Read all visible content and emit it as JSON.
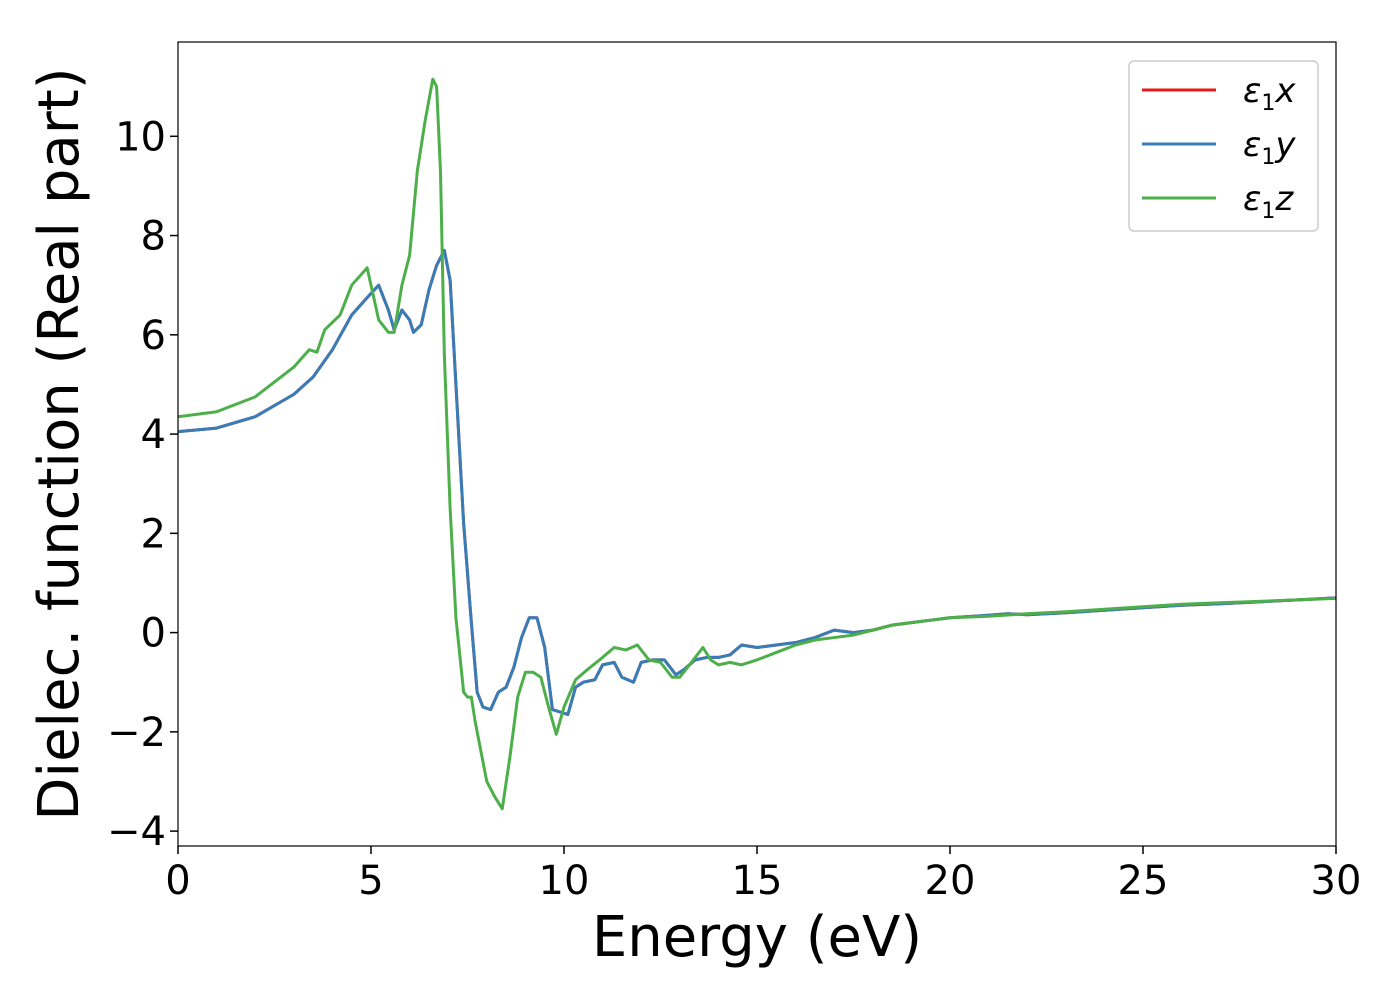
{
  "chart_data": {
    "type": "line",
    "title": "",
    "xlabel": "Energy (eV)",
    "ylabel": "Dielec. function (Real part)",
    "xlim": [
      0,
      30
    ],
    "ylim": [
      -4.3,
      11.9
    ],
    "xticks": [
      0,
      5,
      10,
      15,
      20,
      25,
      30
    ],
    "xtick_labels": [
      "0",
      "5",
      "10",
      "15",
      "20",
      "25",
      "30"
    ],
    "yticks": [
      -4,
      -2,
      0,
      2,
      4,
      6,
      8,
      10
    ],
    "ytick_labels": [
      "−4",
      "−2",
      "0",
      "2",
      "4",
      "6",
      "8",
      "10"
    ],
    "grid": false,
    "legend_position": "top-right",
    "series": [
      {
        "name": "ε",
        "sub": "1",
        "axis": "x",
        "color": "#e41a1c",
        "x": [
          0,
          1,
          2,
          3,
          3.5,
          4,
          4.5,
          4.9,
          5.2,
          5.45,
          5.6,
          5.8,
          6,
          6.1,
          6.3,
          6.5,
          6.7,
          6.9,
          7.05,
          7.2,
          7.4,
          7.6,
          7.75,
          7.9,
          8.1,
          8.3,
          8.5,
          8.7,
          8.9,
          9.1,
          9.3,
          9.5,
          9.7,
          9.9,
          10.1,
          10.3,
          10.5,
          10.8,
          11,
          11.3,
          11.5,
          11.8,
          12,
          12.3,
          12.6,
          12.9,
          13.1,
          13.4,
          13.7,
          14,
          14.3,
          14.6,
          15,
          15.5,
          16,
          16.5,
          17,
          17.5,
          18,
          18.5,
          19,
          19.5,
          20,
          21,
          21.5,
          22,
          23,
          24,
          25,
          26,
          27,
          28,
          29,
          30
        ],
        "values": [
          4.05,
          4.12,
          4.35,
          4.8,
          5.15,
          5.7,
          6.4,
          6.75,
          7.0,
          6.5,
          6.1,
          6.5,
          6.3,
          6.05,
          6.2,
          6.9,
          7.4,
          7.7,
          7.1,
          5.0,
          2.2,
          0.2,
          -1.2,
          -1.5,
          -1.55,
          -1.2,
          -1.1,
          -0.7,
          -0.1,
          0.3,
          0.3,
          -0.3,
          -1.55,
          -1.6,
          -1.65,
          -1.1,
          -1.0,
          -0.95,
          -0.65,
          -0.6,
          -0.9,
          -1.0,
          -0.6,
          -0.55,
          -0.55,
          -0.85,
          -0.75,
          -0.55,
          -0.5,
          -0.5,
          -0.45,
          -0.25,
          -0.3,
          -0.25,
          -0.2,
          -0.1,
          0.05,
          0.0,
          0.05,
          0.15,
          0.2,
          0.25,
          0.3,
          0.35,
          0.38,
          0.36,
          0.4,
          0.45,
          0.5,
          0.55,
          0.58,
          0.62,
          0.66,
          0.7
        ]
      },
      {
        "name": "ε",
        "sub": "1",
        "axis": "y",
        "color": "#377eb8",
        "x": [
          0,
          1,
          2,
          3,
          3.5,
          4,
          4.5,
          4.9,
          5.2,
          5.45,
          5.6,
          5.8,
          6,
          6.1,
          6.3,
          6.5,
          6.7,
          6.9,
          7.05,
          7.2,
          7.4,
          7.6,
          7.75,
          7.9,
          8.1,
          8.3,
          8.5,
          8.7,
          8.9,
          9.1,
          9.3,
          9.5,
          9.7,
          9.9,
          10.1,
          10.3,
          10.5,
          10.8,
          11,
          11.3,
          11.5,
          11.8,
          12,
          12.3,
          12.6,
          12.9,
          13.1,
          13.4,
          13.7,
          14,
          14.3,
          14.6,
          15,
          15.5,
          16,
          16.5,
          17,
          17.5,
          18,
          18.5,
          19,
          19.5,
          20,
          21,
          21.5,
          22,
          23,
          24,
          25,
          26,
          27,
          28,
          29,
          30
        ],
        "values": [
          4.05,
          4.12,
          4.35,
          4.8,
          5.15,
          5.7,
          6.4,
          6.75,
          7.0,
          6.5,
          6.1,
          6.5,
          6.3,
          6.05,
          6.2,
          6.9,
          7.4,
          7.7,
          7.1,
          5.0,
          2.2,
          0.2,
          -1.2,
          -1.5,
          -1.55,
          -1.2,
          -1.1,
          -0.7,
          -0.1,
          0.3,
          0.3,
          -0.3,
          -1.55,
          -1.6,
          -1.65,
          -1.1,
          -1.0,
          -0.95,
          -0.65,
          -0.6,
          -0.9,
          -1.0,
          -0.6,
          -0.55,
          -0.55,
          -0.85,
          -0.75,
          -0.55,
          -0.5,
          -0.5,
          -0.45,
          -0.25,
          -0.3,
          -0.25,
          -0.2,
          -0.1,
          0.05,
          0.0,
          0.05,
          0.15,
          0.2,
          0.25,
          0.3,
          0.35,
          0.38,
          0.36,
          0.4,
          0.45,
          0.5,
          0.55,
          0.58,
          0.62,
          0.66,
          0.7
        ]
      },
      {
        "name": "ε",
        "sub": "1",
        "axis": "z",
        "color": "#4daf4a",
        "x": [
          0,
          1,
          2,
          3,
          3.4,
          3.6,
          3.8,
          4.2,
          4.5,
          4.9,
          5.2,
          5.45,
          5.6,
          5.8,
          6,
          6.2,
          6.4,
          6.6,
          6.7,
          6.8,
          6.9,
          7.05,
          7.2,
          7.4,
          7.5,
          7.6,
          7.7,
          7.8,
          8.0,
          8.2,
          8.4,
          8.6,
          8.8,
          9.0,
          9.2,
          9.4,
          9.6,
          9.8,
          10,
          10.3,
          10.6,
          11,
          11.3,
          11.6,
          11.9,
          12.2,
          12.5,
          12.8,
          13.0,
          13.3,
          13.6,
          13.8,
          14.0,
          14.3,
          14.6,
          15,
          15.5,
          16,
          16.5,
          17,
          17.5,
          18,
          18.5,
          19,
          19.5,
          20,
          21,
          22,
          23,
          24,
          25,
          26,
          27,
          28,
          29,
          30
        ],
        "values": [
          4.35,
          4.45,
          4.75,
          5.35,
          5.7,
          5.65,
          6.1,
          6.4,
          7.0,
          7.35,
          6.3,
          6.05,
          6.05,
          7.0,
          7.6,
          9.3,
          10.3,
          11.15,
          11.0,
          9.3,
          5.6,
          2.5,
          0.3,
          -1.2,
          -1.3,
          -1.3,
          -1.8,
          -2.2,
          -3.0,
          -3.3,
          -3.55,
          -2.5,
          -1.3,
          -0.8,
          -0.8,
          -0.9,
          -1.5,
          -2.05,
          -1.5,
          -0.95,
          -0.75,
          -0.5,
          -0.3,
          -0.35,
          -0.25,
          -0.55,
          -0.6,
          -0.9,
          -0.9,
          -0.6,
          -0.3,
          -0.55,
          -0.65,
          -0.6,
          -0.65,
          -0.55,
          -0.4,
          -0.25,
          -0.15,
          -0.1,
          -0.05,
          0.05,
          0.15,
          0.2,
          0.25,
          0.3,
          0.33,
          0.38,
          0.42,
          0.47,
          0.52,
          0.57,
          0.6,
          0.63,
          0.66,
          0.69
        ]
      }
    ]
  }
}
